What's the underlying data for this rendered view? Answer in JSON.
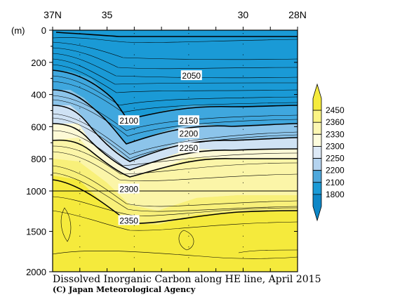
{
  "chart_data": {
    "type": "heatmap",
    "title": "Dissolved Inorganic Carbon along HE line, April 2015",
    "credit": "(C) Japan Meteorological Agency",
    "x_axis": {
      "reversed": true,
      "range": [
        28,
        37
      ],
      "tick_labels": [
        {
          "value": 37,
          "label": "37N"
        },
        {
          "value": 35,
          "label": "35"
        },
        {
          "value": 30,
          "label": "30"
        },
        {
          "value": 28,
          "label": "28N"
        }
      ],
      "minor_ticks": [
        37,
        36,
        35,
        34,
        33,
        32,
        31,
        30,
        29,
        28
      ]
    },
    "y_axis": {
      "unit_label": "(m)",
      "segments": [
        {
          "from": 0,
          "to": 1000,
          "ticks": [
            0,
            200,
            400,
            600,
            800,
            1000
          ]
        },
        {
          "from": 1000,
          "to": 2000,
          "ticks": [
            1500,
            2000
          ]
        }
      ]
    },
    "colorbar": {
      "labels": [
        "2450",
        "2360",
        "2330",
        "2300",
        "2250",
        "2200",
        "2100",
        "1800"
      ],
      "colors": [
        "#f5eb3c",
        "#fbf484",
        "#fcf7b3",
        "#fdfcdd",
        "#dde9f6",
        "#b4d3ef",
        "#4fa8dc",
        "#1a9ad6",
        "#0d87c7"
      ]
    },
    "contour_labels": [
      {
        "value": "2050",
        "lat": 31.9,
        "depth": 280
      },
      {
        "value": "2100",
        "lat": 34.2,
        "depth": 560
      },
      {
        "value": "2150",
        "lat": 32.0,
        "depth": 560
      },
      {
        "value": "2200",
        "lat": 32.0,
        "depth": 640
      },
      {
        "value": "2250",
        "lat": 32.0,
        "depth": 730
      },
      {
        "value": "2300",
        "lat": 34.2,
        "depth": 985
      },
      {
        "value": "2350",
        "lat": 34.2,
        "depth": 1360
      }
    ],
    "stations_lat": [
      36,
      34,
      32,
      30
    ]
  },
  "colors": {
    "warm": "#f5e93c",
    "cool": "#19a0dc"
  }
}
